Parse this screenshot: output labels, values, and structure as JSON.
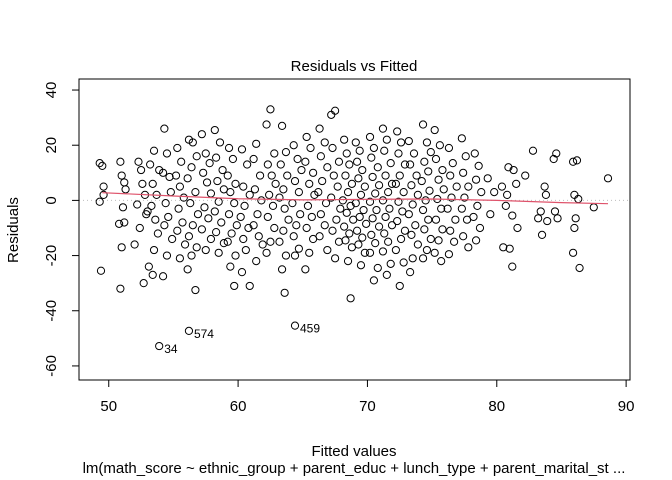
{
  "chart_data": {
    "type": "scatter",
    "title": "Residuals vs Fitted",
    "xlabel": "Fitted values",
    "ylabel": "Residuals",
    "subtitle": "lm(math_score ~ ethnic_group + parent_educ + lunch_type + parent_marital_st ...",
    "xlim": [
      47.7,
      90.3
    ],
    "ylim": [
      -65.1,
      44.0
    ],
    "x_ticks": [
      50,
      60,
      70,
      80,
      90
    ],
    "y_ticks": [
      -60,
      -40,
      -20,
      0,
      20,
      40
    ],
    "x_tick_labels": [
      "50",
      "60",
      "70",
      "80",
      "90"
    ],
    "y_tick_labels": [
      "-60",
      "-40",
      "-20",
      "0",
      "20",
      "40"
    ],
    "reference_line_y": 0,
    "smooth_line": {
      "color": "#DF536B",
      "x": [
        49.5,
        55,
        60,
        65,
        70,
        75,
        80,
        85,
        88.6
      ],
      "y": [
        2.8,
        1.6,
        0.6,
        0.2,
        0.4,
        0.5,
        0.0,
        -0.8,
        -1.2
      ]
    },
    "labeled_points": [
      {
        "label": "34",
        "x": 53.9,
        "y": -52.8
      },
      {
        "label": "574",
        "x": 56.2,
        "y": -47.3
      },
      {
        "label": "459",
        "x": 64.4,
        "y": -45.4
      }
    ],
    "points": [
      [
        49.3,
        13.5
      ],
      [
        49.5,
        12.5
      ],
      [
        49.6,
        5.0
      ],
      [
        49.6,
        2.0
      ],
      [
        49.3,
        -0.5
      ],
      [
        49.4,
        -25.5
      ],
      [
        50.9,
        14.0
      ],
      [
        51.0,
        9.0
      ],
      [
        51.2,
        6.5
      ],
      [
        51.3,
        4.0
      ],
      [
        51.1,
        -2.5
      ],
      [
        51.2,
        -8.0
      ],
      [
        50.8,
        -8.5
      ],
      [
        51.0,
        -17.0
      ],
      [
        50.9,
        -32.0
      ],
      [
        52.3,
        14.0
      ],
      [
        52.5,
        11.0
      ],
      [
        52.6,
        6.0
      ],
      [
        52.8,
        2.0
      ],
      [
        52.2,
        -1.5
      ],
      [
        52.9,
        -5.0
      ],
      [
        53.0,
        -4.0
      ],
      [
        52.4,
        -10.0
      ],
      [
        52.0,
        -16.0
      ],
      [
        52.7,
        -30.0
      ],
      [
        53.5,
        18.0
      ],
      [
        53.2,
        13.0
      ],
      [
        53.9,
        11.0
      ],
      [
        53.4,
        6.0
      ],
      [
        53.7,
        2.0
      ],
      [
        53.3,
        -2.0
      ],
      [
        53.6,
        -7.0
      ],
      [
        53.8,
        -12.0
      ],
      [
        53.5,
        -18.0
      ],
      [
        53.1,
        -24.0
      ],
      [
        53.4,
        -27.0
      ],
      [
        54.3,
        26.0
      ],
      [
        54.5,
        17.0
      ],
      [
        54.2,
        10.0
      ],
      [
        54.7,
        8.5
      ],
      [
        54.8,
        3.0
      ],
      [
        54.4,
        -1.0
      ],
      [
        54.6,
        -6.0
      ],
      [
        54.3,
        -9.0
      ],
      [
        54.9,
        -14.0
      ],
      [
        54.5,
        -20.0
      ],
      [
        54.2,
        -27.5
      ],
      [
        55.3,
        19.0
      ],
      [
        55.6,
        14.0
      ],
      [
        55.2,
        9.0
      ],
      [
        55.5,
        5.0
      ],
      [
        55.8,
        1.0
      ],
      [
        55.4,
        -3.0
      ],
      [
        55.7,
        -8.0
      ],
      [
        55.3,
        -11.0
      ],
      [
        55.9,
        -16.0
      ],
      [
        55.5,
        -21.0
      ],
      [
        56.2,
        22.0
      ],
      [
        56.5,
        21.0
      ],
      [
        56.8,
        16.0
      ],
      [
        56.4,
        12.0
      ],
      [
        56.1,
        8.0
      ],
      [
        56.7,
        3.0
      ],
      [
        56.3,
        -1.0
      ],
      [
        56.9,
        -5.0
      ],
      [
        56.5,
        -9.0
      ],
      [
        56.2,
        -13.0
      ],
      [
        56.8,
        -17.0
      ],
      [
        56.4,
        -20.0
      ],
      [
        56.1,
        -25.0
      ],
      [
        56.7,
        -32.5
      ],
      [
        57.2,
        24.0
      ],
      [
        57.5,
        17.0
      ],
      [
        57.8,
        13.5
      ],
      [
        57.3,
        10.0
      ],
      [
        57.6,
        6.5
      ],
      [
        57.9,
        2.5
      ],
      [
        57.4,
        -2.5
      ],
      [
        57.7,
        -6.5
      ],
      [
        57.2,
        -10.5
      ],
      [
        57.9,
        -14.0
      ],
      [
        57.5,
        -18.0
      ],
      [
        58.2,
        25.5
      ],
      [
        58.6,
        21.0
      ],
      [
        58.3,
        15.5
      ],
      [
        58.8,
        11.0
      ],
      [
        58.4,
        7.0
      ],
      [
        58.9,
        4.0
      ],
      [
        58.5,
        -0.5
      ],
      [
        58.2,
        -4.0
      ],
      [
        58.7,
        -8.0
      ],
      [
        58.3,
        -11.5
      ],
      [
        58.9,
        -15.5
      ],
      [
        58.5,
        -19.0
      ],
      [
        59.3,
        19.0
      ],
      [
        59.6,
        15.0
      ],
      [
        59.2,
        9.0
      ],
      [
        59.8,
        6.0
      ],
      [
        59.4,
        3.0
      ],
      [
        59.7,
        -1.0
      ],
      [
        59.3,
        -5.0
      ],
      [
        59.9,
        -9.0
      ],
      [
        59.5,
        -12.0
      ],
      [
        59.2,
        -15.0
      ],
      [
        59.8,
        -20.0
      ],
      [
        59.4,
        -24.0
      ],
      [
        59.7,
        -31.0
      ],
      [
        60.3,
        18.5
      ],
      [
        60.7,
        13.0
      ],
      [
        60.4,
        5.0
      ],
      [
        60.9,
        2.0
      ],
      [
        60.5,
        -2.0
      ],
      [
        60.2,
        -6.0
      ],
      [
        60.8,
        -10.0
      ],
      [
        60.4,
        -14.0
      ],
      [
        60.6,
        -18.0
      ],
      [
        60.3,
        -26.0
      ],
      [
        60.9,
        -31.0
      ],
      [
        61.4,
        20.5
      ],
      [
        61.2,
        15.0
      ],
      [
        61.7,
        9.0
      ],
      [
        61.3,
        4.0
      ],
      [
        61.8,
        0.0
      ],
      [
        61.5,
        -5.0
      ],
      [
        61.2,
        -9.0
      ],
      [
        61.6,
        -13.0
      ],
      [
        61.9,
        -16.0
      ],
      [
        61.4,
        -22.0
      ],
      [
        62.2,
        27.5
      ],
      [
        62.5,
        33.0
      ],
      [
        62.8,
        17.0
      ],
      [
        62.3,
        13.0
      ],
      [
        62.6,
        9.0
      ],
      [
        62.9,
        6.0
      ],
      [
        62.4,
        2.0
      ],
      [
        62.7,
        -2.0
      ],
      [
        62.3,
        -6.0
      ],
      [
        62.8,
        -10.0
      ],
      [
        62.5,
        -15.0
      ],
      [
        62.2,
        -19.0
      ],
      [
        63.4,
        27.0
      ],
      [
        63.7,
        17.5
      ],
      [
        63.3,
        13.0
      ],
      [
        63.8,
        9.0
      ],
      [
        63.5,
        4.0
      ],
      [
        63.2,
        1.0
      ],
      [
        63.6,
        -3.0
      ],
      [
        63.9,
        -7.0
      ],
      [
        63.5,
        -11.0
      ],
      [
        63.2,
        -15.0
      ],
      [
        63.7,
        -20.0
      ],
      [
        63.4,
        -25.0
      ],
      [
        63.6,
        -33.5
      ],
      [
        64.3,
        20.0
      ],
      [
        64.6,
        15.0
      ],
      [
        64.9,
        11.0
      ],
      [
        64.4,
        7.0
      ],
      [
        64.7,
        3.0
      ],
      [
        64.2,
        -1.0
      ],
      [
        64.8,
        -5.0
      ],
      [
        64.5,
        -9.0
      ],
      [
        64.3,
        -13.0
      ],
      [
        64.7,
        -17.5
      ],
      [
        64.4,
        -20.0
      ],
      [
        65.3,
        23.0
      ],
      [
        65.6,
        19.0
      ],
      [
        65.2,
        14.0
      ],
      [
        65.8,
        10.0
      ],
      [
        65.5,
        6.0
      ],
      [
        65.9,
        2.0
      ],
      [
        65.4,
        -2.0
      ],
      [
        65.7,
        -6.0
      ],
      [
        65.3,
        -10.0
      ],
      [
        65.8,
        -14.0
      ],
      [
        65.5,
        -19.0
      ],
      [
        65.2,
        -25.0
      ],
      [
        66.3,
        26.0
      ],
      [
        66.7,
        21.0
      ],
      [
        66.4,
        16.0
      ],
      [
        66.9,
        12.0
      ],
      [
        66.5,
        7.0
      ],
      [
        66.2,
        3.0
      ],
      [
        66.8,
        -1.0
      ],
      [
        66.4,
        -5.0
      ],
      [
        66.7,
        -9.0
      ],
      [
        66.3,
        -13.0
      ],
      [
        66.9,
        -18.0
      ],
      [
        67.2,
        31.0
      ],
      [
        67.5,
        32.5
      ],
      [
        67.3,
        19.0
      ],
      [
        67.8,
        14.0
      ],
      [
        67.4,
        9.0
      ],
      [
        67.7,
        5.0
      ],
      [
        67.2,
        1.0
      ],
      [
        67.9,
        -3.0
      ],
      [
        67.6,
        -7.0
      ],
      [
        67.3,
        -11.0
      ],
      [
        67.8,
        -15.0
      ],
      [
        67.5,
        -21.0
      ],
      [
        68.2,
        22.0
      ],
      [
        68.4,
        17.0
      ],
      [
        68.6,
        13.0
      ],
      [
        68.3,
        9.0
      ],
      [
        68.8,
        6.0
      ],
      [
        68.5,
        3.0
      ],
      [
        68.1,
        0.0
      ],
      [
        68.7,
        -2.0
      ],
      [
        68.4,
        -4.5
      ],
      [
        68.9,
        -7.0
      ],
      [
        68.2,
        -9.5
      ],
      [
        68.6,
        -12.0
      ],
      [
        68.3,
        -14.5
      ],
      [
        68.8,
        -17.0
      ],
      [
        68.5,
        -22.0
      ],
      [
        68.7,
        -35.5
      ],
      [
        69.1,
        21.0
      ],
      [
        69.4,
        18.0
      ],
      [
        69.2,
        14.0
      ],
      [
        69.6,
        11.0
      ],
      [
        69.3,
        8.0
      ],
      [
        69.8,
        5.0
      ],
      [
        69.5,
        2.0
      ],
      [
        69.1,
        -1.0
      ],
      [
        69.7,
        -3.5
      ],
      [
        69.4,
        -6.0
      ],
      [
        69.9,
        -8.5
      ],
      [
        69.2,
        -11.0
      ],
      [
        69.6,
        -13.5
      ],
      [
        69.3,
        -16.0
      ],
      [
        69.8,
        -19.0
      ],
      [
        69.5,
        -23.5
      ],
      [
        70.2,
        23.0
      ],
      [
        70.5,
        19.0
      ],
      [
        70.3,
        15.5
      ],
      [
        70.8,
        12.0
      ],
      [
        70.4,
        8.5
      ],
      [
        70.9,
        5.5
      ],
      [
        70.6,
        2.5
      ],
      [
        70.2,
        -0.5
      ],
      [
        70.7,
        -3.5
      ],
      [
        70.4,
        -6.5
      ],
      [
        70.9,
        -9.5
      ],
      [
        70.3,
        -12.5
      ],
      [
        70.6,
        -15.5
      ],
      [
        70.2,
        -19.0
      ],
      [
        70.8,
        -24.5
      ],
      [
        70.5,
        -29.0
      ],
      [
        71.2,
        26.0
      ],
      [
        71.5,
        22.0
      ],
      [
        71.3,
        18.0
      ],
      [
        71.8,
        13.5
      ],
      [
        71.4,
        9.0
      ],
      [
        71.9,
        6.0
      ],
      [
        71.6,
        3.0
      ],
      [
        71.2,
        0.0
      ],
      [
        71.7,
        -3.0
      ],
      [
        71.4,
        -6.0
      ],
      [
        71.9,
        -9.0
      ],
      [
        71.3,
        -12.0
      ],
      [
        71.6,
        -15.0
      ],
      [
        71.2,
        -18.5
      ],
      [
        71.8,
        -23.0
      ],
      [
        71.5,
        -27.0
      ],
      [
        72.3,
        25.0
      ],
      [
        72.6,
        21.0
      ],
      [
        72.4,
        17.0
      ],
      [
        72.9,
        13.0
      ],
      [
        72.5,
        9.0
      ],
      [
        72.2,
        6.0
      ],
      [
        72.8,
        3.0
      ],
      [
        72.4,
        -0.5
      ],
      [
        72.7,
        -4.0
      ],
      [
        72.3,
        -7.5
      ],
      [
        72.9,
        -11.0
      ],
      [
        72.6,
        -14.0
      ],
      [
        72.2,
        -18.0
      ],
      [
        72.8,
        -22.5
      ],
      [
        72.5,
        -31.0
      ],
      [
        73.2,
        21.5
      ],
      [
        73.6,
        17.0
      ],
      [
        73.3,
        13.0
      ],
      [
        73.8,
        9.0
      ],
      [
        73.4,
        5.5
      ],
      [
        73.9,
        2.0
      ],
      [
        73.5,
        -1.5
      ],
      [
        73.2,
        -5.0
      ],
      [
        73.7,
        -9.0
      ],
      [
        73.4,
        -12.5
      ],
      [
        73.9,
        -16.0
      ],
      [
        73.5,
        -21.0
      ],
      [
        73.3,
        -26.0
      ],
      [
        74.3,
        27.5
      ],
      [
        74.6,
        21.0
      ],
      [
        74.9,
        17.5
      ],
      [
        74.4,
        14.0
      ],
      [
        74.7,
        10.5
      ],
      [
        74.2,
        7.0
      ],
      [
        74.8,
        3.5
      ],
      [
        74.5,
        0.0
      ],
      [
        74.3,
        -3.5
      ],
      [
        74.7,
        -7.0
      ],
      [
        74.4,
        -10.5
      ],
      [
        74.9,
        -14.0
      ],
      [
        74.6,
        -18.0
      ],
      [
        74.3,
        -21.0
      ],
      [
        75.2,
        25.5
      ],
      [
        75.6,
        20.0
      ],
      [
        75.3,
        15.0
      ],
      [
        75.8,
        11.0
      ],
      [
        75.5,
        7.5
      ],
      [
        75.9,
        4.0
      ],
      [
        75.4,
        0.5
      ],
      [
        75.7,
        -3.0
      ],
      [
        75.3,
        -7.0
      ],
      [
        75.8,
        -10.5
      ],
      [
        75.5,
        -14.5
      ],
      [
        75.2,
        -19.0
      ],
      [
        75.7,
        -22.0
      ],
      [
        76.3,
        19.0
      ],
      [
        76.6,
        13.5
      ],
      [
        76.4,
        9.0
      ],
      [
        76.9,
        5.0
      ],
      [
        76.5,
        1.0
      ],
      [
        76.2,
        -3.0
      ],
      [
        76.8,
        -7.0
      ],
      [
        76.4,
        -11.0
      ],
      [
        76.7,
        -15.0
      ],
      [
        76.3,
        -19.5
      ],
      [
        77.3,
        22.5
      ],
      [
        77.6,
        16.0
      ],
      [
        77.4,
        10.0
      ],
      [
        77.8,
        5.0
      ],
      [
        77.5,
        1.0
      ],
      [
        77.3,
        -3.0
      ],
      [
        77.7,
        -7.0
      ],
      [
        77.4,
        -13.0
      ],
      [
        77.8,
        -17.0
      ],
      [
        78.3,
        17.0
      ],
      [
        78.6,
        12.5
      ],
      [
        78.4,
        7.5
      ],
      [
        78.8,
        3.0
      ],
      [
        78.5,
        -2.0
      ],
      [
        78.2,
        -6.0
      ],
      [
        78.7,
        -10.0
      ],
      [
        78.4,
        -14.5
      ],
      [
        79.3,
        8.0
      ],
      [
        79.8,
        3.0
      ],
      [
        79.5,
        -5.0
      ],
      [
        80.4,
        5.0
      ],
      [
        80.7,
        -2.0
      ],
      [
        80.5,
        -17.0
      ],
      [
        80.9,
        12.0
      ],
      [
        80.8,
        2.0
      ],
      [
        81.3,
        11.0
      ],
      [
        81.5,
        6.0
      ],
      [
        81.2,
        -5.5
      ],
      [
        81.6,
        -10.0
      ],
      [
        81.0,
        -17.5
      ],
      [
        81.2,
        -24.0
      ],
      [
        82.2,
        9.0
      ],
      [
        82.8,
        18.0
      ],
      [
        83.4,
        -4.0
      ],
      [
        83.7,
        5.0
      ],
      [
        83.8,
        2.0
      ],
      [
        83.5,
        -12.5
      ],
      [
        83.9,
        -7.5
      ],
      [
        83.2,
        -6.5
      ],
      [
        84.4,
        15.0
      ],
      [
        84.6,
        17.0
      ],
      [
        84.5,
        -4.0
      ],
      [
        84.7,
        -6.5
      ],
      [
        85.9,
        14.0
      ],
      [
        86.2,
        14.5
      ],
      [
        86.0,
        2.0
      ],
      [
        86.3,
        0.5
      ],
      [
        86.1,
        -6.5
      ],
      [
        86.0,
        -10.0
      ],
      [
        85.9,
        -19.0
      ],
      [
        86.4,
        -24.5
      ],
      [
        87.5,
        -2.5
      ],
      [
        88.6,
        8.0
      ]
    ]
  }
}
